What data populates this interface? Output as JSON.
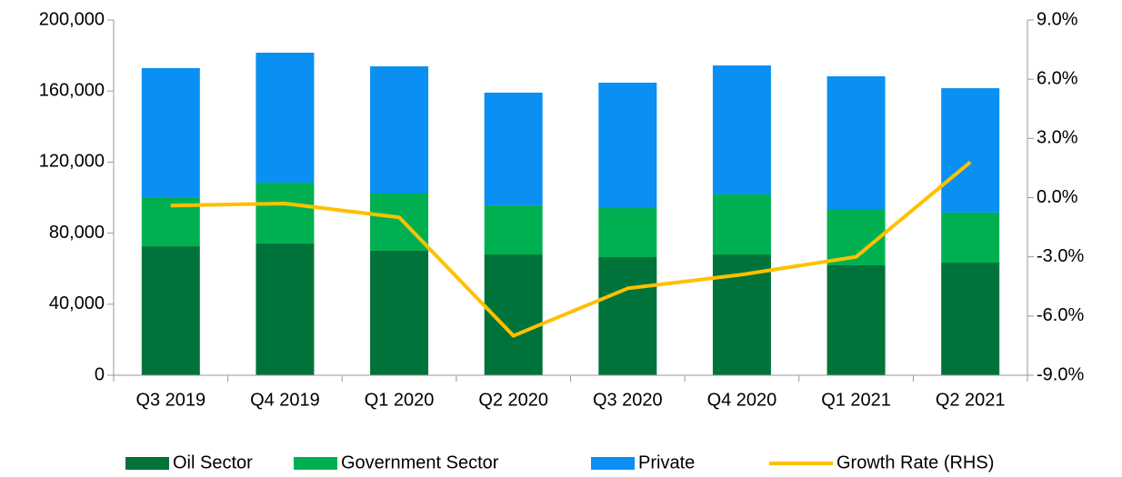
{
  "chart_data": {
    "type": "stacked_bar_line",
    "categories": [
      "Q3 2019",
      "Q4 2019",
      "Q1 2020",
      "Q2 2020",
      "Q3 2020",
      "Q4 2020",
      "Q1 2021",
      "Q2 2021"
    ],
    "series": [
      {
        "name": "Oil Sector",
        "color": "#00733a",
        "values": [
          72600,
          74200,
          70100,
          68000,
          66500,
          68000,
          61900,
          63400
        ]
      },
      {
        "name": "Government Sector",
        "color": "#00b050",
        "values": [
          27700,
          34200,
          32200,
          27700,
          27600,
          33800,
          31700,
          28200
        ]
      },
      {
        "name": "Private",
        "color": "#0a8ff2",
        "values": [
          72600,
          73200,
          71600,
          63400,
          70600,
          72600,
          74700,
          70000
        ]
      },
      {
        "name": "Growth Rate (RHS)",
        "color": "#ffc000",
        "axis": "y2",
        "values": [
          -0.4,
          -0.3,
          -1.0,
          -7.0,
          -4.6,
          -3.9,
          -3.0,
          1.8
        ]
      }
    ],
    "ylim": [
      0,
      200000
    ],
    "yticks": [
      0,
      {
        "value": 40000,
        "label": "40,000"
      },
      {
        "value": 80000,
        "label": "80,000"
      },
      {
        "value": 120000,
        "label": "120,000"
      },
      {
        "value": 160000,
        "label": "160,000"
      },
      {
        "value": 200000,
        "label": "200,000"
      }
    ],
    "y2lim": [
      -9,
      9
    ],
    "y2ticks": [
      {
        "value": -9,
        "label": "-9.0%"
      },
      {
        "value": -6,
        "label": "-6.0%"
      },
      {
        "value": -3,
        "label": "-3.0%"
      },
      {
        "value": 0,
        "label": "0.0%"
      },
      {
        "value": 3,
        "label": "3.0%"
      },
      {
        "value": 6,
        "label": "6.0%"
      },
      {
        "value": 9,
        "label": "9.0%"
      }
    ],
    "legend": "bottom"
  }
}
